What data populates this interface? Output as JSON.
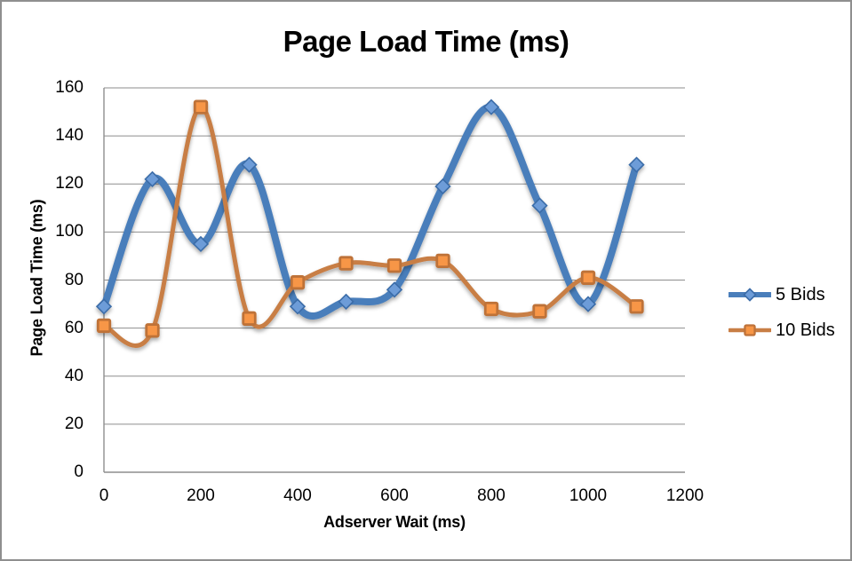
{
  "chart_data": {
    "type": "line",
    "title": "Page Load Time (ms)",
    "xlabel": "Adserver Wait (ms)",
    "ylabel": "Page Load Time (ms)",
    "x": [
      0,
      100,
      200,
      300,
      400,
      500,
      600,
      700,
      800,
      900,
      1000,
      1100
    ],
    "series": [
      {
        "name": "5 Bids",
        "values": [
          69,
          122,
          95,
          128,
          69,
          71,
          76,
          119,
          152,
          111,
          70,
          128
        ],
        "color": "#4A7EBB",
        "marker": "diamond",
        "marker_fill": "#6D9CD8",
        "marker_stroke": "#3B6CA8",
        "line_width": 8
      },
      {
        "name": "10 Bids",
        "values": [
          61,
          59,
          152,
          64,
          79,
          87,
          86,
          88,
          68,
          67,
          81,
          69
        ],
        "color": "#C87E45",
        "marker": "square",
        "marker_fill": "#F79646",
        "marker_stroke": "#BE7239",
        "line_width": 5
      }
    ],
    "xlim": [
      0,
      1200
    ],
    "ylim": [
      0,
      160
    ],
    "x_ticks": [
      0,
      200,
      400,
      600,
      800,
      1000,
      1200
    ],
    "y_ticks": [
      0,
      20,
      40,
      60,
      80,
      100,
      120,
      140,
      160
    ],
    "grid": "horizontal",
    "smooth": true,
    "legend_position": "right"
  },
  "colors": {
    "gridline": "#8E8E8E",
    "axis": "#8E8E8E",
    "frame_border": "#8F8F8F",
    "background": "#FFFFFF",
    "text": "#000000"
  }
}
